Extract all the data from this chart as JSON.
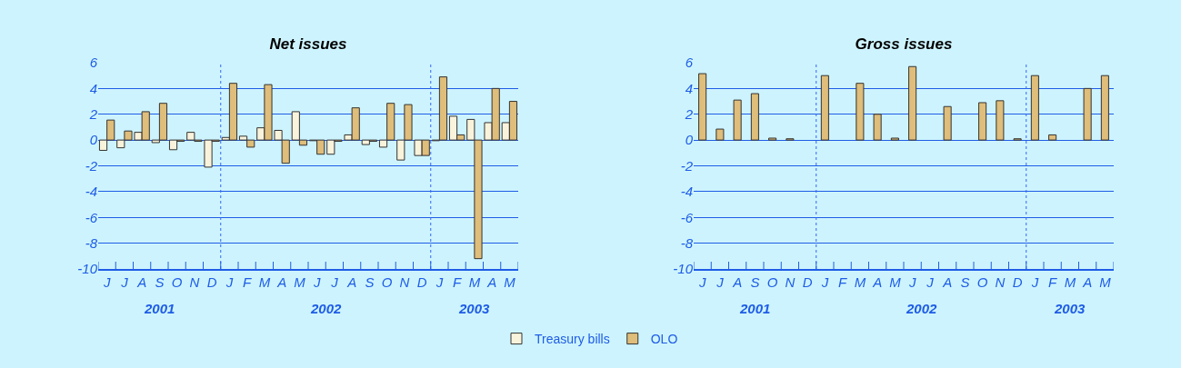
{
  "chart_data": [
    {
      "type": "bar",
      "title": "Net issues",
      "categories": [
        "J",
        "J",
        "A",
        "S",
        "O",
        "N",
        "D",
        "J",
        "F",
        "M",
        "A",
        "M",
        "J",
        "J",
        "A",
        "S",
        "O",
        "N",
        "D",
        "J",
        "F",
        "M",
        "A",
        "M"
      ],
      "series": [
        {
          "name": "Treasury bills",
          "color": "#faf3dc",
          "values": [
            -0.8,
            -0.6,
            0.6,
            -0.2,
            -0.75,
            0.6,
            -2.1,
            0.2,
            0.3,
            0.95,
            0.75,
            2.2,
            -0.05,
            -1.1,
            0.4,
            -0.35,
            -0.55,
            -1.55,
            -1.2,
            -0.05,
            1.85,
            1.6,
            1.35,
            1.35
          ]
        },
        {
          "name": "OLO",
          "color": "#dfbd7a",
          "values": [
            1.55,
            0.7,
            2.2,
            2.85,
            -0.1,
            -0.1,
            -0.1,
            4.4,
            -0.55,
            4.3,
            -1.8,
            -0.4,
            -1.1,
            -0.1,
            2.5,
            -0.1,
            2.85,
            2.75,
            -1.2,
            4.9,
            0.4,
            -9.2,
            4.0,
            3.0
          ]
        }
      ],
      "ylim": [
        -10,
        6
      ],
      "yticks": [
        -10,
        -8,
        -6,
        -4,
        -2,
        0,
        2,
        4,
        6
      ],
      "grid": "y",
      "legend": "bottom",
      "annotations": [
        "2001",
        "2002",
        "2003"
      ]
    },
    {
      "type": "bar",
      "title": "Gross issues",
      "categories": [
        "J",
        "J",
        "A",
        "S",
        "O",
        "N",
        "D",
        "J",
        "F",
        "M",
        "A",
        "M",
        "J",
        "J",
        "A",
        "S",
        "O",
        "N",
        "D",
        "J",
        "F",
        "M",
        "A",
        "M"
      ],
      "color": "#dfbd7a",
      "values": [
        5.15,
        0.85,
        3.1,
        3.6,
        0.15,
        0.1,
        null,
        5.0,
        null,
        4.4,
        2.0,
        0.15,
        5.7,
        null,
        2.6,
        null,
        2.9,
        3.05,
        0.1,
        5.0,
        0.4,
        null,
        4.0,
        5.0
      ],
      "ylim": [
        -10,
        6
      ],
      "yticks": [
        -10,
        -8,
        -6,
        -4,
        -2,
        0,
        2,
        4,
        6
      ],
      "grid": "y",
      "annotations": [
        "2001",
        "2002",
        "2003"
      ]
    }
  ]
}
